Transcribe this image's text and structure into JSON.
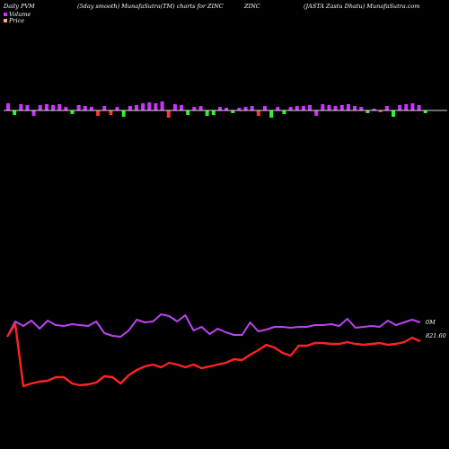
{
  "header": {
    "left": "Daily PVM",
    "middle": "(5day smooth) MunafaSutra(TM) charts for ZINC",
    "symbol": "ZINC",
    "right": "(JASTA Zastu Dhatu) MunafaSutra.com"
  },
  "legend": {
    "volume_label": "Volume",
    "price_label": "Price"
  },
  "colors": {
    "background": "#000000",
    "volume_up": "#cc33ff",
    "volume_down_red": "#ff3333",
    "volume_down_green": "#33ee33",
    "volume_line": "#bb44ee",
    "price_line": "#ff2222",
    "baseline": "#dddddd"
  },
  "chart_data": {
    "type": "line",
    "labels": {
      "volume_end": "0M",
      "price_end": "821.60"
    },
    "volume_bars": [
      {
        "v": 8,
        "c": "up"
      },
      {
        "v": -5,
        "c": "green"
      },
      {
        "v": 7,
        "c": "up"
      },
      {
        "v": 6,
        "c": "up"
      },
      {
        "v": -6,
        "c": "up"
      },
      {
        "v": 6,
        "c": "up"
      },
      {
        "v": 7,
        "c": "up"
      },
      {
        "v": 6,
        "c": "up"
      },
      {
        "v": 7,
        "c": "up"
      },
      {
        "v": 4,
        "c": "up"
      },
      {
        "v": -4,
        "c": "green"
      },
      {
        "v": 6,
        "c": "up"
      },
      {
        "v": 5,
        "c": "up"
      },
      {
        "v": 4,
        "c": "up"
      },
      {
        "v": -6,
        "c": "red"
      },
      {
        "v": 5,
        "c": "up"
      },
      {
        "v": -5,
        "c": "red"
      },
      {
        "v": 4,
        "c": "up"
      },
      {
        "v": -7,
        "c": "green"
      },
      {
        "v": 5,
        "c": "up"
      },
      {
        "v": 6,
        "c": "up"
      },
      {
        "v": 8,
        "c": "up"
      },
      {
        "v": 9,
        "c": "up"
      },
      {
        "v": 8,
        "c": "up"
      },
      {
        "v": 10,
        "c": "up"
      },
      {
        "v": -8,
        "c": "red"
      },
      {
        "v": 7,
        "c": "up"
      },
      {
        "v": 6,
        "c": "up"
      },
      {
        "v": -5,
        "c": "green"
      },
      {
        "v": 4,
        "c": "up"
      },
      {
        "v": 5,
        "c": "up"
      },
      {
        "v": -6,
        "c": "green"
      },
      {
        "v": -5,
        "c": "green"
      },
      {
        "v": 4,
        "c": "up"
      },
      {
        "v": 3,
        "c": "up"
      },
      {
        "v": -3,
        "c": "green"
      },
      {
        "v": 3,
        "c": "up"
      },
      {
        "v": 4,
        "c": "up"
      },
      {
        "v": 5,
        "c": "up"
      },
      {
        "v": -6,
        "c": "red"
      },
      {
        "v": 5,
        "c": "up"
      },
      {
        "v": -8,
        "c": "green"
      },
      {
        "v": 4,
        "c": "up"
      },
      {
        "v": -4,
        "c": "green"
      },
      {
        "v": 4,
        "c": "up"
      },
      {
        "v": 5,
        "c": "up"
      },
      {
        "v": 5,
        "c": "up"
      },
      {
        "v": 6,
        "c": "up"
      },
      {
        "v": -6,
        "c": "up"
      },
      {
        "v": 7,
        "c": "up"
      },
      {
        "v": 6,
        "c": "up"
      },
      {
        "v": 5,
        "c": "up"
      },
      {
        "v": 6,
        "c": "up"
      },
      {
        "v": 7,
        "c": "up"
      },
      {
        "v": 5,
        "c": "up"
      },
      {
        "v": 4,
        "c": "up"
      },
      {
        "v": -3,
        "c": "green"
      },
      {
        "v": 2,
        "c": "up"
      },
      {
        "v": -2,
        "c": "red"
      },
      {
        "v": 5,
        "c": "up"
      },
      {
        "v": -7,
        "c": "green"
      },
      {
        "v": 6,
        "c": "up"
      },
      {
        "v": 7,
        "c": "up"
      },
      {
        "v": 8,
        "c": "up"
      },
      {
        "v": 6,
        "c": "up"
      },
      {
        "v": -3,
        "c": "green"
      }
    ],
    "volume_line": [
      375,
      358,
      363,
      357,
      366,
      357,
      362,
      363,
      361,
      362,
      363,
      358,
      371,
      374,
      375,
      368,
      356,
      359,
      358,
      350,
      352,
      358,
      351,
      368,
      364,
      372,
      366,
      370,
      373,
      373,
      359,
      369,
      367,
      364,
      364,
      365,
      364,
      364,
      362,
      362,
      361,
      363,
      355,
      365,
      364,
      363,
      364,
      357,
      362,
      359,
      356,
      359
    ],
    "price_line": [
      375,
      361,
      430,
      427,
      425,
      424,
      420,
      420,
      427,
      429,
      428,
      426,
      419,
      420,
      427,
      418,
      412,
      408,
      406,
      409,
      404,
      406,
      409,
      406,
      410,
      408,
      406,
      404,
      400,
      401,
      395,
      390,
      384,
      387,
      393,
      396,
      385,
      385,
      382,
      382,
      383,
      383,
      381,
      383,
      384,
      383,
      382,
      384,
      383,
      381,
      376,
      380
    ]
  }
}
